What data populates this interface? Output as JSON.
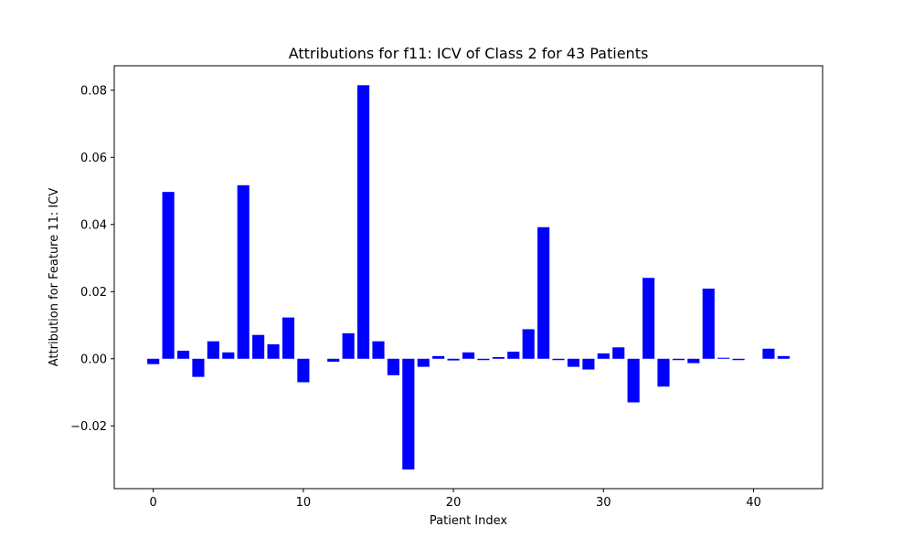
{
  "chart_data": {
    "type": "bar",
    "title": "Attributions for f11: ICV of Class 2 for 43 Patients",
    "xlabel": "Patient Index",
    "ylabel": "Attribution for Feature 11: ICV",
    "x": [
      0,
      1,
      2,
      3,
      4,
      5,
      6,
      7,
      8,
      9,
      10,
      11,
      12,
      13,
      14,
      15,
      16,
      17,
      18,
      19,
      20,
      21,
      22,
      23,
      24,
      25,
      26,
      27,
      28,
      29,
      30,
      31,
      32,
      33,
      34,
      35,
      36,
      37,
      38,
      39,
      40,
      41,
      42
    ],
    "values": [
      -0.0016,
      0.0497,
      0.0024,
      -0.0054,
      0.0052,
      0.0019,
      0.0517,
      0.0071,
      0.0043,
      0.0123,
      -0.007,
      0.0,
      -0.0009,
      0.0076,
      0.0815,
      0.0052,
      -0.0049,
      -0.033,
      -0.0024,
      0.0008,
      -0.0005,
      0.0019,
      -0.0004,
      0.0005,
      0.0021,
      0.0088,
      0.0392,
      -0.0004,
      -0.0024,
      -0.0032,
      0.0016,
      0.0034,
      -0.013,
      0.0241,
      -0.0083,
      -0.0004,
      -0.0013,
      0.0209,
      0.0003,
      -0.0004,
      0.0,
      0.003,
      0.0008
    ],
    "xlim": [
      -2.6,
      44.6
    ],
    "ylim": [
      -0.0387,
      0.0873
    ],
    "xticks": [
      0,
      10,
      20,
      30,
      40
    ],
    "xtick_labels": [
      "0",
      "10",
      "20",
      "30",
      "40"
    ],
    "yticks": [
      -0.02,
      0.0,
      0.02,
      0.04,
      0.06,
      0.08
    ],
    "ytick_labels": [
      "−0.02",
      "0.00",
      "0.02",
      "0.04",
      "0.06",
      "0.08"
    ],
    "bar_color": "#0000ff",
    "grid": false
  }
}
